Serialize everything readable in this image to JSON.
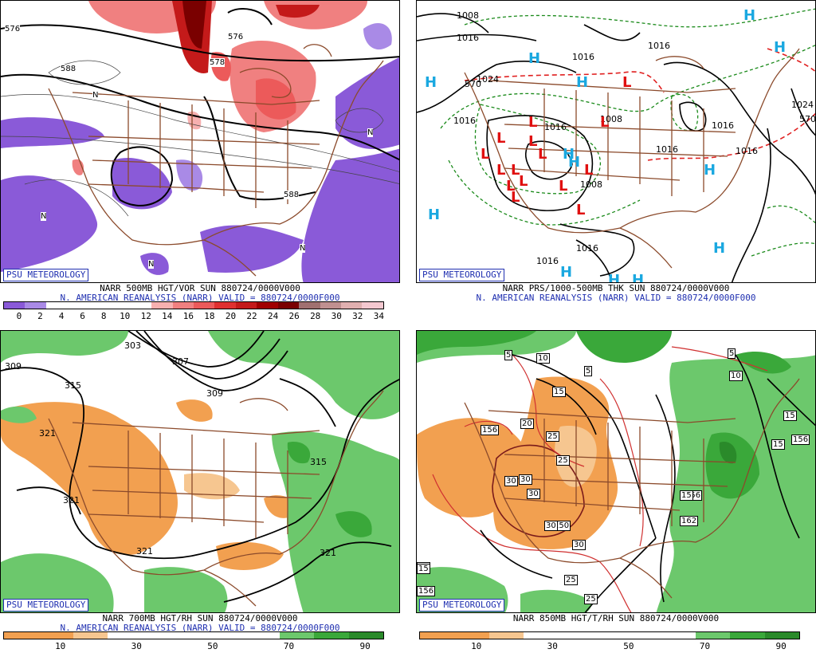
{
  "badge": "PSU METEOROLOGY",
  "panels": {
    "tl": {
      "line1": "NARR 500MB HGT/VOR SUN 880724/0000V000",
      "line2": "N. AMERICAN REANALYSIS (NARR) VALID = 880724/0000F000",
      "legend_colors": [
        "#8a5ad8",
        "#a98ae6",
        "#ffffff",
        "#ffffff",
        "#ffffff",
        "#ffffff",
        "#ffffff",
        "#f7b0b0",
        "#f08080",
        "#ec5a5a",
        "#e03030",
        "#c41a1a",
        "#a00000",
        "#7a0000",
        "#a07070",
        "#c09090",
        "#e0b0b0",
        "#f4c8d0"
      ],
      "legend_ticks": [
        "0",
        "2",
        "4",
        "6",
        "8",
        "10",
        "12",
        "14",
        "16",
        "18",
        "20",
        "22",
        "24",
        "26",
        "28",
        "30",
        "32",
        "34"
      ],
      "labels": [
        "576",
        "588",
        "576",
        "578",
        "588",
        "N",
        "N",
        "N",
        "N",
        "N"
      ]
    },
    "tr": {
      "line1": "NARR PRS/1000-500MB THK SUN 880724/0000V000",
      "line2": "N. AMERICAN REANALYSIS (NARR) VALID = 880724/0000F000",
      "labels": [
        "1008",
        "1016",
        "1024",
        "1016",
        "1016",
        "1016",
        "1008",
        "1016",
        "1016",
        "1008",
        "1024",
        "1016",
        "1016",
        "1016",
        "1016",
        "570",
        "570"
      ],
      "highs": [
        "H",
        "H",
        "H",
        "H",
        "H",
        "H",
        "H",
        "H",
        "H",
        "H",
        "H",
        "H",
        "H"
      ],
      "lows": [
        "L",
        "L",
        "L",
        "L",
        "L",
        "L",
        "L",
        "L",
        "L",
        "L",
        "L",
        "L",
        "L",
        "L",
        "L"
      ]
    },
    "bl": {
      "line1": "NARR 700MB HGT/RH SUN 880724/0000V000",
      "line2": "N. AMERICAN REANALYSIS (NARR) VALID = 880724/0000F000",
      "legend_colors": [
        "#f2a050",
        "#f2a050",
        "#f6c690",
        "#ffffff",
        "#ffffff",
        "#ffffff",
        "#ffffff",
        "#ffffff",
        "#6cc86c",
        "#3aa83a",
        "#2a8a2a"
      ],
      "legend_ticks": [
        "10",
        "30",
        "50",
        "70",
        "90"
      ],
      "labels": [
        "309",
        "315",
        "321",
        "321",
        "321",
        "303",
        "307",
        "309",
        "315",
        "321"
      ]
    },
    "br": {
      "line1": "NARR 850MB HGT/T/RH SUN 880724/0000V000",
      "line2": "",
      "legend_colors": [
        "#f2a050",
        "#f2a050",
        "#f6c690",
        "#ffffff",
        "#ffffff",
        "#ffffff",
        "#ffffff",
        "#ffffff",
        "#6cc86c",
        "#3aa83a",
        "#2a8a2a"
      ],
      "legend_ticks": [
        "10",
        "30",
        "50",
        "70",
        "90"
      ],
      "labels": [
        "156",
        "156",
        "150",
        "156",
        "162",
        "156",
        "5",
        "5",
        "5",
        "10",
        "10",
        "15",
        "15",
        "15",
        "15",
        "15",
        "20",
        "25",
        "25",
        "25",
        "25",
        "30",
        "30",
        "30",
        "30",
        "30",
        "15"
      ]
    }
  }
}
